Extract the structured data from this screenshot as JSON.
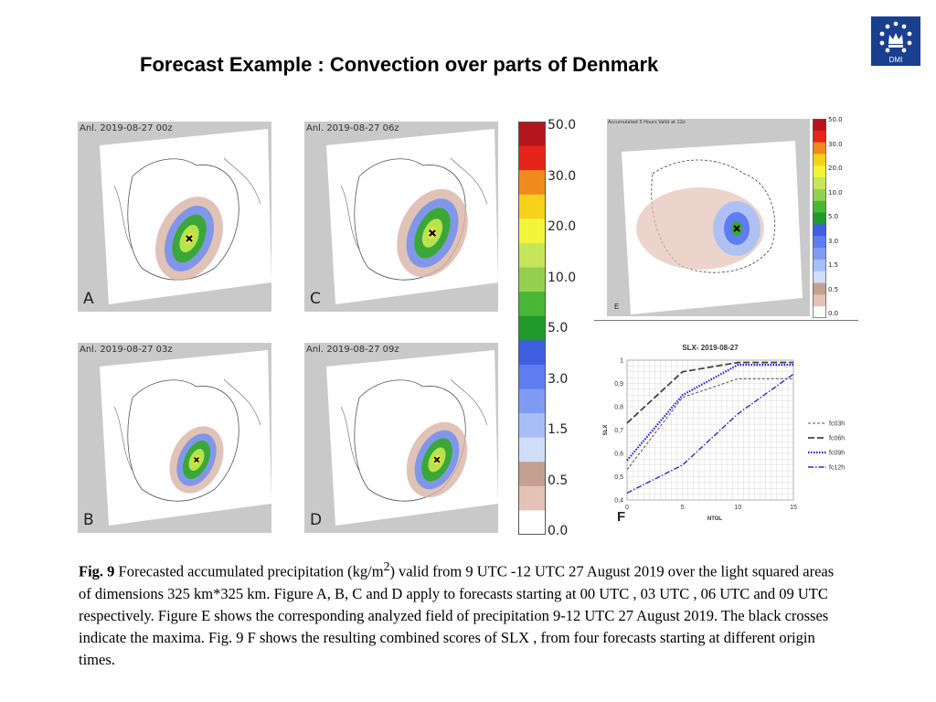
{
  "title": "Forecast Example :  Convection over parts of Denmark",
  "logo": {
    "text": "DMI",
    "icon": "crown-stars-icon",
    "color": "#1a3f8f"
  },
  "maps": [
    {
      "id": "A",
      "label": "Anl. 2019-08-27 00z",
      "letter": "A"
    },
    {
      "id": "B",
      "label": "Anl. 2019-08-27 03z",
      "letter": "B"
    },
    {
      "id": "C",
      "label": "Anl. 2019-08-27 06z",
      "letter": "C"
    },
    {
      "id": "D",
      "label": "Anl. 2019-08-27 09z",
      "letter": "D"
    }
  ],
  "colorbar": {
    "ticks": [
      "50.0",
      "30.0",
      "20.0",
      "10.0",
      "5.0",
      "3.0",
      "1.5",
      "0.5",
      "0.0"
    ],
    "colors": [
      "#b5161d",
      "#e62419",
      "#f08a1e",
      "#f6d21a",
      "#f2f53a",
      "#c5e65a",
      "#93d04f",
      "#4ab636",
      "#1f9a2b",
      "#3f5fe0",
      "#5d7df0",
      "#7e9bf3",
      "#a7bff6",
      "#cfddf8",
      "#c59f90",
      "#e4c2b6",
      "#ffffff"
    ]
  },
  "panel_e": {
    "title": "Accumulated 3 Hours Valid at 12z",
    "letter": "E",
    "ticks": [
      "50.0",
      "30.0",
      "20.0",
      "10.0",
      "5.0",
      "3.0",
      "1.5",
      "0.5",
      "0.0"
    ]
  },
  "chart_data": {
    "type": "line",
    "title": "SLX- 2019-08-27",
    "xlabel": "NTOL",
    "ylabel": "SLX",
    "x": [
      0,
      5,
      10,
      15
    ],
    "xticks": [
      "0",
      "5",
      "10",
      "15"
    ],
    "yticks": [
      "0,4",
      "0,5",
      "0,6",
      "0,7",
      "0,8",
      "0,9",
      "1"
    ],
    "xlim": [
      0,
      15
    ],
    "ylim": [
      0.4,
      1.0
    ],
    "grid": true,
    "legend_position": "right",
    "series": [
      {
        "name": "fc03h",
        "values": [
          0.53,
          0.84,
          0.92,
          0.92
        ],
        "color": "#555555",
        "dash": "short"
      },
      {
        "name": "fc06h",
        "values": [
          0.73,
          0.95,
          0.99,
          0.99
        ],
        "color": "#444444",
        "dash": "long"
      },
      {
        "name": "fc09h",
        "values": [
          0.57,
          0.85,
          0.98,
          0.98
        ],
        "color": "#1a1aff",
        "dash": "dot"
      },
      {
        "name": "fc12h",
        "values": [
          0.43,
          0.55,
          0.77,
          0.94
        ],
        "color": "#2a2ad8",
        "dash": "dashdot"
      }
    ]
  },
  "f_letter": "F",
  "caption": {
    "fig_label": "Fig. 9",
    "part1": "  Forecasted  accumulated precipitation (kg/m",
    "sup": "2",
    "part2": ")  valid from 9 UTC -12 UTC 27 August 2019 over the light squared areas of dimensions  325 km*325 km. Figure A, B, C and D apply to forecasts starting at 00 UTC , 03 UTC , 06 UTC and 09 UTC respectively.  Figure E  shows the corresponding analyzed field of precipitation 9-12 UTC 27 August 2019. The black crosses indicate the maxima. Fig. 9 F shows the resulting combined  scores of SLX , from four forecasts starting at different origin times."
  }
}
